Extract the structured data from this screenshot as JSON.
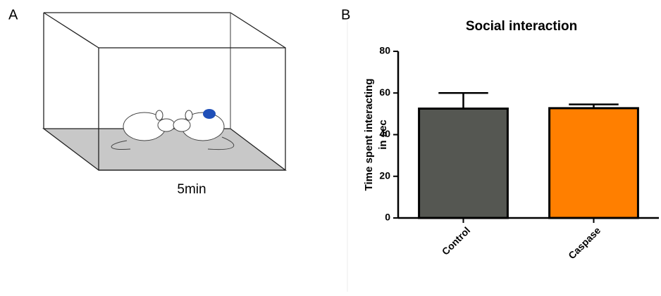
{
  "panel_a": {
    "label": "A",
    "caption": "5min"
  },
  "chart_data": {
    "type": "bar",
    "panel_label": "B",
    "title": "Social interaction",
    "ylabel": [
      "Time spent interacting",
      "in sec"
    ],
    "categories": [
      "Control",
      "Caspase"
    ],
    "values": [
      52.5,
      52.7
    ],
    "errors": [
      7.5,
      1.8
    ],
    "colors": [
      "#555752",
      "#ff7f00"
    ],
    "ylim": [
      0,
      80
    ],
    "yticks": [
      0,
      20,
      40,
      60,
      80
    ]
  }
}
